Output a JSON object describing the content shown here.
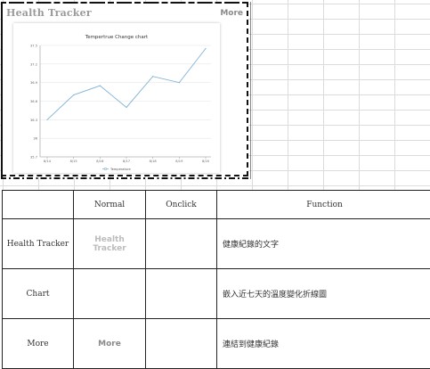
{
  "widget": {
    "title": "Health Tracker",
    "more_label": "More"
  },
  "chart_data": {
    "type": "line",
    "title": "Tempertrue Change chart",
    "x": [
      "8/14",
      "8/15",
      "8/16",
      "8/17",
      "8/18",
      "8/19",
      "8/20"
    ],
    "series": [
      {
        "name": "Temperature",
        "values": [
          36.3,
          36.7,
          36.85,
          36.5,
          37.0,
          36.9,
          37.45
        ]
      }
    ],
    "yticks": [
      "35.7",
      "36",
      "36.3",
      "36.6",
      "36.9",
      "37.2",
      "37.5"
    ],
    "ylim": [
      35.7,
      37.5
    ],
    "grid": true,
    "legend": "bottom",
    "line_color": "#7fb2d6"
  },
  "table": {
    "headers": [
      "",
      "Normal",
      "Onclick",
      "Function"
    ],
    "rows": [
      {
        "label": "Health Tracker",
        "normal": "Health Tracker",
        "onclick": "",
        "function": "健康紀錄的文字"
      },
      {
        "label": "Chart",
        "normal": "",
        "onclick": "",
        "function": "嵌入近七天的溫度變化折線圖"
      },
      {
        "label": "More",
        "normal": "More",
        "onclick": "",
        "function": "連結到健康紀錄"
      }
    ]
  }
}
